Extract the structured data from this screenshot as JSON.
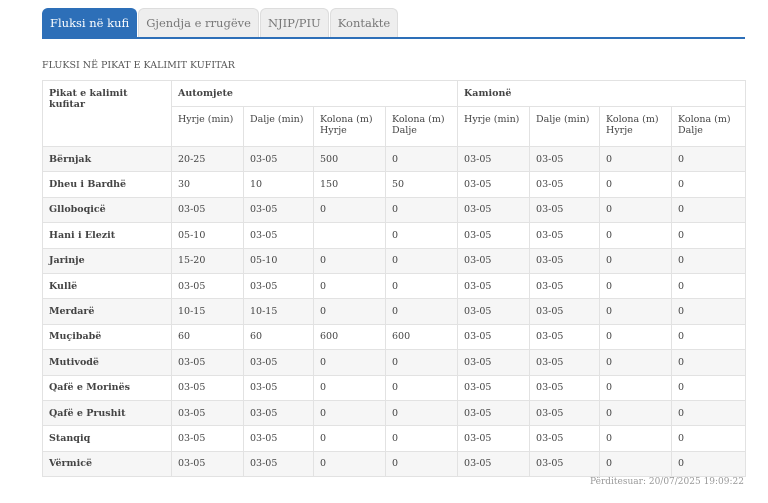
{
  "tabs": [
    "Fluksi në kufi",
    "Gjendja e rrugëve",
    "NJIP/PIU",
    "Kontakte"
  ],
  "section_title": "FLUKSI NË PIKAT E KALIMIT KUFITAR",
  "table": {
    "header": {
      "first": "Pikat e kalimit kufitar",
      "groups": [
        "Automjete",
        "Kamionë"
      ],
      "columns": [
        "Hyrje (min)",
        "Dalje (min)",
        "Kolona (m) Hyrje",
        "Kolona (m) Dalje",
        "Hyrje (min)",
        "Dalje (min)",
        "Kolona (m) Hyrje",
        "Kolona (m) Dalje"
      ]
    },
    "rows": [
      [
        "Bërnjak",
        "20-25",
        "03-05",
        "500",
        "0",
        "03-05",
        "03-05",
        "0",
        "0"
      ],
      [
        "Dheu i Bardhë",
        "30",
        "10",
        "150",
        "50",
        "03-05",
        "03-05",
        "0",
        "0"
      ],
      [
        "Glloboqicë",
        "03-05",
        "03-05",
        "0",
        "0",
        "03-05",
        "03-05",
        "0",
        "0"
      ],
      [
        "Hani i Elezit",
        "05-10",
        "03-05",
        null,
        "0",
        "03-05",
        "03-05",
        "0",
        "0"
      ],
      [
        "Jarinje",
        "15-20",
        "05-10",
        "0",
        "0",
        "03-05",
        "03-05",
        "0",
        "0"
      ],
      [
        "Kullë",
        "03-05",
        "03-05",
        "0",
        "0",
        "03-05",
        "03-05",
        "0",
        "0"
      ],
      [
        "Merdarë",
        "10-15",
        "10-15",
        "0",
        "0",
        "03-05",
        "03-05",
        "0",
        "0"
      ],
      [
        "Muçibabë",
        "60",
        "60",
        "600",
        "600",
        "03-05",
        "03-05",
        "0",
        "0"
      ],
      [
        "Mutivodë",
        "03-05",
        "03-05",
        "0",
        "0",
        "03-05",
        "03-05",
        "0",
        "0"
      ],
      [
        "Qafë e Morinës",
        "03-05",
        "03-05",
        "0",
        "0",
        "03-05",
        "03-05",
        "0",
        "0"
      ],
      [
        "Qafë e Prushit",
        "03-05",
        "03-05",
        "0",
        "0",
        "03-05",
        "03-05",
        "0",
        "0"
      ],
      [
        "Stanqiq",
        "03-05",
        "03-05",
        "0",
        "0",
        "03-05",
        "03-05",
        "0",
        "0"
      ],
      [
        "Vërmicë",
        "03-05",
        "03-05",
        "0",
        "0",
        "03-05",
        "03-05",
        "0",
        "0"
      ]
    ]
  },
  "updated": "Përditesuar: 20/07/2025 19:09:22"
}
